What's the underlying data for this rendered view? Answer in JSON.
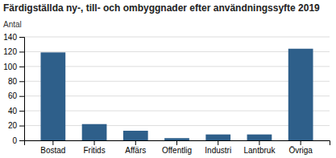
{
  "chart_data": {
    "type": "bar",
    "title": "Färdigställda ny-, till- och ombyggnader efter användningssyfte 2019",
    "ylabel": "Antal",
    "categories": [
      "Bostad",
      "Fritids",
      "Affärs",
      "Offentlig",
      "Industri",
      "Lantbruk",
      "Övriga"
    ],
    "values": [
      119,
      22,
      13,
      3,
      8,
      8,
      124
    ],
    "color": "#2E5F8A",
    "ylim": [
      0,
      140
    ],
    "yticks": [
      0,
      20,
      40,
      60,
      80,
      100,
      120,
      140
    ],
    "grid": true
  }
}
